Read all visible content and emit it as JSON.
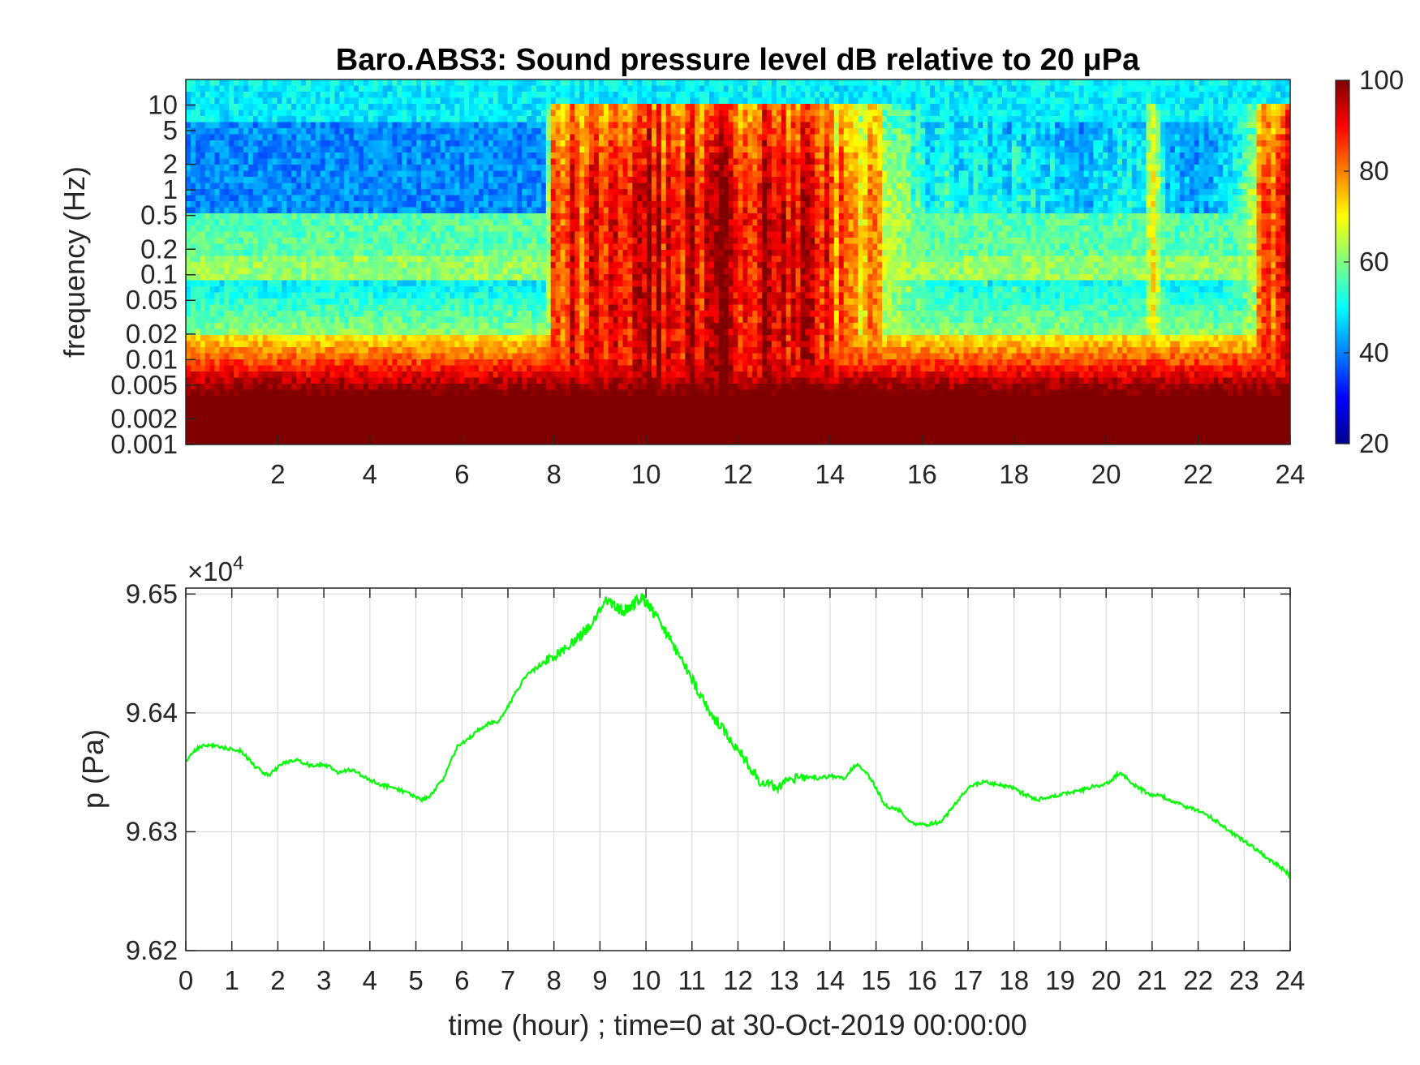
{
  "chart_data": [
    {
      "type": "heatmap",
      "title": "Baro.ABS3: Sound pressure level dB relative to 20 μPa",
      "xlabel": "",
      "ylabel": "frequency (Hz)",
      "y_scale": "log",
      "xlim": [
        0,
        24
      ],
      "ylim": [
        0.001,
        20
      ],
      "x_ticks": [
        "2",
        "4",
        "6",
        "8",
        "10",
        "12",
        "14",
        "16",
        "18",
        "20",
        "22",
        "24"
      ],
      "y_ticks": [
        "0.001",
        "0.002",
        "0.005",
        "0.01",
        "0.02",
        "0.05",
        "0.1",
        "0.2",
        "0.5",
        "1",
        "2",
        "5",
        "10"
      ],
      "y_tick_values": [
        0.001,
        0.002,
        0.005,
        0.01,
        0.02,
        0.05,
        0.1,
        0.2,
        0.5,
        1,
        2,
        5,
        10
      ],
      "colormap": "jet",
      "colorbar_range": [
        20,
        100
      ],
      "colorbar_ticks": [
        "20",
        "40",
        "60",
        "80",
        "100"
      ],
      "activity_profile": {
        "description_hours": [
          0,
          7.7,
          8,
          9,
          10,
          11,
          12,
          13,
          14,
          15,
          16,
          17,
          18,
          19,
          20,
          20.8,
          21,
          21.3,
          22,
          23,
          23.5,
          24
        ],
        "level": [
          0.05,
          0.05,
          0.85,
          0.9,
          0.95,
          0.92,
          0.95,
          0.92,
          0.85,
          0.7,
          0.45,
          0.4,
          0.42,
          0.38,
          0.4,
          0.4,
          0.75,
          0.35,
          0.3,
          0.45,
          0.85,
          0.9
        ]
      }
    },
    {
      "type": "line",
      "title": "",
      "xlabel": "time (hour) ; time=0 at 30-Oct-2019 00:00:00",
      "ylabel": "p (Pa)",
      "y_multiplier": "×10^4",
      "xlim": [
        0,
        24
      ],
      "ylim": [
        96200,
        96505
      ],
      "grid": true,
      "x_ticks": [
        "0",
        "1",
        "2",
        "3",
        "4",
        "5",
        "6",
        "7",
        "8",
        "9",
        "10",
        "11",
        "12",
        "13",
        "14",
        "15",
        "16",
        "17",
        "18",
        "19",
        "20",
        "21",
        "22",
        "23",
        "24"
      ],
      "y_ticks": [
        "9.62",
        "9.63",
        "9.64",
        "9.65"
      ],
      "y_tick_values": [
        96200,
        96300,
        96400,
        96500
      ],
      "series": [
        {
          "color": "#00ff00",
          "x": [
            0,
            0.3,
            0.6,
            0.9,
            1.2,
            1.5,
            1.8,
            2.1,
            2.4,
            2.7,
            3.0,
            3.3,
            3.6,
            3.9,
            4.2,
            4.5,
            4.8,
            5.1,
            5.3,
            5.6,
            5.9,
            6.2,
            6.5,
            6.8,
            7.1,
            7.4,
            7.7,
            8.0,
            8.3,
            8.6,
            8.9,
            9.1,
            9.3,
            9.5,
            9.7,
            9.9,
            10.1,
            10.4,
            10.7,
            11.0,
            11.3,
            11.6,
            11.9,
            12.2,
            12.5,
            12.8,
            13.1,
            13.4,
            13.7,
            14.0,
            14.3,
            14.6,
            14.9,
            15.2,
            15.5,
            15.8,
            16.1,
            16.4,
            16.7,
            17.0,
            17.3,
            17.6,
            17.9,
            18.2,
            18.5,
            18.8,
            19.1,
            19.4,
            19.7,
            20.0,
            20.3,
            20.6,
            20.9,
            21.2,
            21.5,
            21.8,
            22.1,
            22.4,
            22.7,
            23.0,
            23.3,
            23.6,
            23.9,
            24.0
          ],
          "y": [
            96360,
            96372,
            96373,
            96370,
            96368,
            96355,
            96347,
            96358,
            96360,
            96356,
            96357,
            96350,
            96352,
            96346,
            96340,
            96337,
            96333,
            96327,
            96330,
            96345,
            96372,
            96380,
            96390,
            96393,
            96412,
            96432,
            96440,
            96448,
            96455,
            96466,
            96478,
            96496,
            96490,
            96485,
            96490,
            96498,
            96488,
            96470,
            96450,
            96428,
            96406,
            96390,
            96374,
            96358,
            96342,
            96338,
            96342,
            96346,
            96345,
            96347,
            96345,
            96358,
            96344,
            96322,
            96318,
            96307,
            96306,
            96308,
            96322,
            96337,
            96342,
            96340,
            96338,
            96332,
            96327,
            96330,
            96332,
            96334,
            96338,
            96340,
            96350,
            96340,
            96332,
            96330,
            96325,
            96320,
            96316,
            96309,
            96300,
            96292,
            96284,
            96275,
            96267,
            96263
          ]
        }
      ]
    }
  ]
}
